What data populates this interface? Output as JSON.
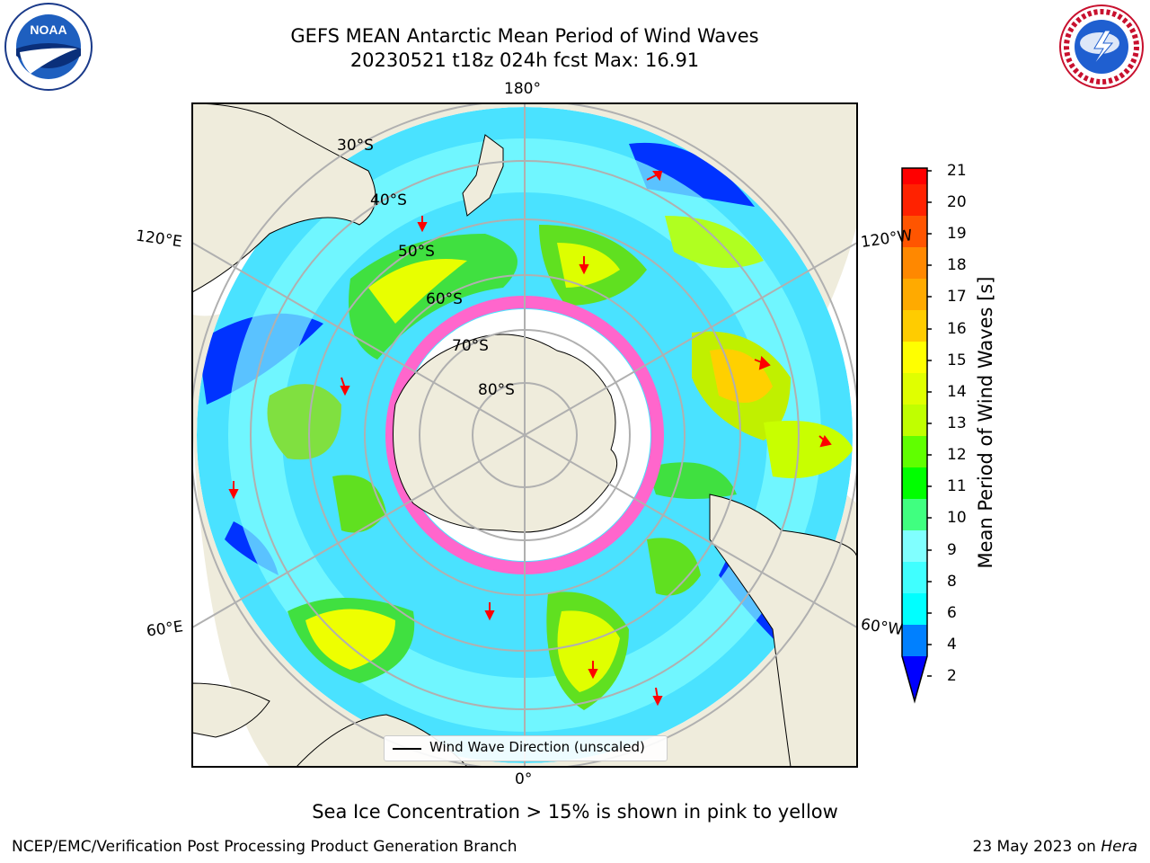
{
  "title_line1": "GEFS MEAN Antarctic Mean Period of Wind Waves",
  "title_line2": "20230521 t18z 024h fcst   Max: 16.91",
  "logos": {
    "left": "noaa-logo",
    "right": "nws-logo"
  },
  "map": {
    "longitude_labels": {
      "top": "180°",
      "bottom": "0°",
      "upper_left": "120°E",
      "upper_right": "120°W",
      "lower_left": "60°E",
      "lower_right": "60°W"
    },
    "latitude_labels": [
      "30°S",
      "40°S",
      "50°S",
      "60°S",
      "70°S",
      "80°S"
    ],
    "colors": {
      "land": "#efecdc",
      "ocean_low": "#0000ff",
      "ice_pink": "#ff66cc",
      "grid": "#b0b0b0"
    }
  },
  "legend": {
    "label": "Wind Wave Direction (unscaled)"
  },
  "colorbar": {
    "label": "Mean Period of Wind Waves [s]",
    "ticks": [
      "2",
      "4",
      "6",
      "8",
      "9",
      "10",
      "11",
      "12",
      "13",
      "14",
      "15",
      "16",
      "17",
      "18",
      "19",
      "20",
      "21"
    ],
    "colors": [
      "#0000ff",
      "#0080ff",
      "#00ffff",
      "#40ffff",
      "#80ffff",
      "#40ff80",
      "#00ff00",
      "#60ff00",
      "#c0ff00",
      "#e0ff00",
      "#ffff00",
      "#ffcc00",
      "#ffaa00",
      "#ff8800",
      "#ff5500",
      "#ff2200",
      "#ff0000"
    ]
  },
  "caption": "Sea Ice Concentration > 15% is shown in pink to yellow",
  "footer_left": "NCEP/EMC/Verification Post Processing Product Generation Branch",
  "footer_date": "23 May 2023 on ",
  "footer_machine": "Hera"
}
